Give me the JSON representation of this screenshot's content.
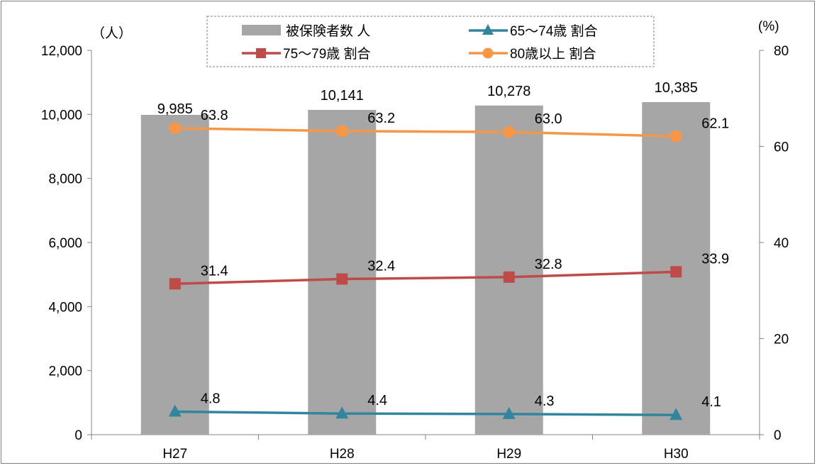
{
  "chart_data": {
    "type": "bar+line",
    "categories": [
      "H27",
      "H28",
      "H29",
      "H30"
    ],
    "y_left": {
      "unit_label": "（人）",
      "ylim": [
        0,
        12000
      ],
      "ticks": [
        0,
        2000,
        4000,
        6000,
        8000,
        10000,
        12000
      ],
      "tick_labels": [
        "0",
        "2,000",
        "4,000",
        "6,000",
        "8,000",
        "10,000",
        "12,000"
      ]
    },
    "y_right": {
      "unit_label": "(%)",
      "ylim": [
        0,
        80
      ],
      "ticks": [
        0,
        20,
        40,
        60,
        80
      ],
      "tick_labels": [
        "0",
        "20",
        "40",
        "60",
        "80"
      ]
    },
    "bars": {
      "name": "被保険者数 人",
      "values": [
        9985,
        10141,
        10278,
        10385
      ],
      "labels": [
        "9,985",
        "10,141",
        "10,278",
        "10,385"
      ],
      "color": "#a6a6a6"
    },
    "series": [
      {
        "name": "65～74歳 割合",
        "values": [
          4.8,
          4.4,
          4.3,
          4.1
        ],
        "labels": [
          "4.8",
          "4.4",
          "4.3",
          "4.1"
        ],
        "color": "#31859c",
        "marker": "triangle"
      },
      {
        "name": "75～79歳 割合",
        "values": [
          31.4,
          32.4,
          32.8,
          33.9
        ],
        "labels": [
          "31.4",
          "32.4",
          "32.8",
          "33.9"
        ],
        "color": "#be4b48",
        "marker": "square"
      },
      {
        "name": "80歳以上 割合",
        "values": [
          63.8,
          63.2,
          63.0,
          62.1
        ],
        "labels": [
          "63.8",
          "63.2",
          "63.0",
          "62.1"
        ],
        "color": "#f79646",
        "marker": "circle"
      }
    ],
    "legend": {
      "placement": "top-center",
      "order": [
        [
          "bar",
          0
        ],
        [
          "series",
          0
        ],
        [
          "series",
          1
        ],
        [
          "series",
          2
        ]
      ]
    },
    "grid": false
  }
}
